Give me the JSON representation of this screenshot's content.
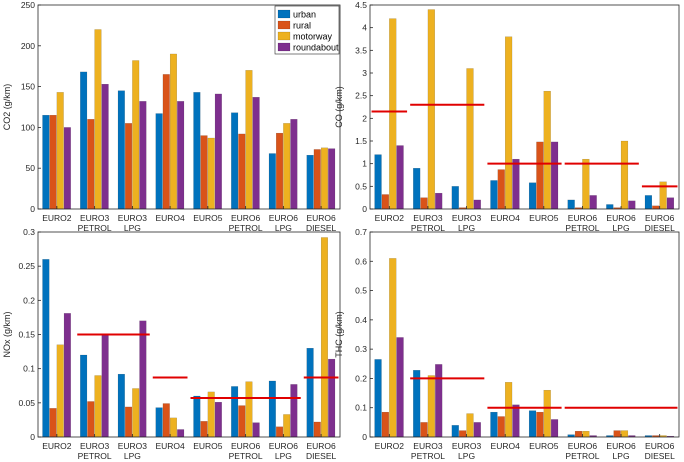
{
  "series_colors": [
    "#0072BD",
    "#D95319",
    "#EDB120",
    "#7E2F8E"
  ],
  "limit_color": "#E00000",
  "legend": {
    "labels": [
      "urban",
      "rural",
      "motorway",
      "roundabout"
    ]
  },
  "chart_data": [
    {
      "id": "co2",
      "type": "bar",
      "ylabel": "CO2 (g/km)",
      "ylim": [
        0,
        250
      ],
      "yticks": [
        "0",
        "50",
        "100",
        "150",
        "200",
        "250"
      ],
      "yticks_values": [
        0,
        50,
        100,
        150,
        200,
        250
      ],
      "categories": [
        [
          "EURO2"
        ],
        [
          "EURO3",
          "PETROL"
        ],
        [
          "EURO3",
          "LPG"
        ],
        [
          "EURO4"
        ],
        [
          "EURO5"
        ],
        [
          "EURO6",
          "PETROL"
        ],
        [
          "EURO6",
          "LPG"
        ],
        [
          "EURO6",
          "DIESEL"
        ]
      ],
      "series": [
        {
          "name": "urban",
          "values": [
            115,
            168,
            145,
            117,
            143,
            118,
            68,
            66
          ]
        },
        {
          "name": "rural",
          "values": [
            115,
            110,
            105,
            165,
            90,
            92,
            93,
            73
          ]
        },
        {
          "name": "motorway",
          "values": [
            143,
            220,
            182,
            190,
            87,
            170,
            105,
            75
          ]
        },
        {
          "name": "roundabout",
          "values": [
            100,
            153,
            132,
            132,
            141,
            137,
            110,
            74
          ]
        }
      ],
      "limits": []
    },
    {
      "id": "co",
      "type": "bar",
      "ylabel": "CO (g/km)",
      "ylim": [
        0,
        4.5
      ],
      "yticks": [
        "0",
        "0.5",
        "1",
        "1.5",
        "2",
        "2.5",
        "3",
        "3.5",
        "4",
        "4.5"
      ],
      "yticks_values": [
        0,
        0.5,
        1,
        1.5,
        2,
        2.5,
        3,
        3.5,
        4,
        4.5
      ],
      "categories": [
        [
          "EURO2"
        ],
        [
          "EURO3",
          "PETROL"
        ],
        [
          "EURO3",
          "LPG"
        ],
        [
          "EURO4"
        ],
        [
          "EURO5"
        ],
        [
          "EURO6",
          "PETROL"
        ],
        [
          "EURO6",
          "LPG"
        ],
        [
          "EURO6",
          "DIESEL"
        ]
      ],
      "series": [
        {
          "name": "urban",
          "values": [
            1.2,
            0.9,
            0.5,
            0.63,
            0.58,
            0.2,
            0.1,
            0.3
          ]
        },
        {
          "name": "rural",
          "values": [
            0.32,
            0.25,
            0.03,
            0.87,
            1.48,
            0.03,
            0.03,
            0.07
          ]
        },
        {
          "name": "motorway",
          "values": [
            4.2,
            4.4,
            3.1,
            3.8,
            2.6,
            1.1,
            1.5,
            0.6
          ]
        },
        {
          "name": "roundabout",
          "values": [
            1.4,
            0.35,
            0.2,
            1.1,
            1.48,
            0.3,
            0.18,
            0.25
          ]
        }
      ],
      "limits": [
        {
          "from": 0,
          "to": 0,
          "value": 2.15
        },
        {
          "from": 1,
          "to": 2,
          "value": 2.3
        },
        {
          "from": 3,
          "to": 4,
          "value": 1.0
        },
        {
          "from": 5,
          "to": 6,
          "value": 1.0
        },
        {
          "from": 7,
          "to": 7,
          "value": 0.5
        }
      ]
    },
    {
      "id": "nox",
      "type": "bar",
      "ylabel": "NOx (g/km)",
      "ylim": [
        0,
        0.3
      ],
      "yticks": [
        "0",
        "0.05",
        "0.1",
        "0.15",
        "0.2",
        "0.25",
        "0.3"
      ],
      "yticks_values": [
        0,
        0.05,
        0.1,
        0.15,
        0.2,
        0.25,
        0.3
      ],
      "categories": [
        [
          "EURO2"
        ],
        [
          "EURO3",
          "PETROL"
        ],
        [
          "EURO3",
          "LPG"
        ],
        [
          "EURO4"
        ],
        [
          "EURO5"
        ],
        [
          "EURO6",
          "PETROL"
        ],
        [
          "EURO6",
          "LPG"
        ],
        [
          "EURO6",
          "DIESEL"
        ]
      ],
      "series": [
        {
          "name": "urban",
          "values": [
            0.26,
            0.12,
            0.092,
            0.043,
            0.06,
            0.074,
            0.082,
            0.13
          ]
        },
        {
          "name": "rural",
          "values": [
            0.042,
            0.052,
            0.044,
            0.049,
            0.023,
            0.046,
            0.015,
            0.022
          ]
        },
        {
          "name": "motorway",
          "values": [
            0.135,
            0.09,
            0.071,
            0.028,
            0.066,
            0.081,
            0.033,
            0.292
          ]
        },
        {
          "name": "roundabout",
          "values": [
            0.181,
            0.15,
            0.17,
            0.011,
            0.051,
            0.021,
            0.077,
            0.114
          ]
        }
      ],
      "limits": [
        {
          "from": 1,
          "to": 2,
          "value": 0.15
        },
        {
          "from": 3,
          "to": 3,
          "value": 0.087
        },
        {
          "from": 4,
          "to": 6,
          "value": 0.057
        },
        {
          "from": 7,
          "to": 7,
          "value": 0.087
        }
      ]
    },
    {
      "id": "thc",
      "type": "bar",
      "ylabel": "THC (g/km)",
      "ylim": [
        0,
        0.7
      ],
      "yticks": [
        "0",
        "0.1",
        "0.2",
        "0.3",
        "0.4",
        "0.5",
        "0.6",
        "0.7"
      ],
      "yticks_values": [
        0,
        0.1,
        0.2,
        0.3,
        0.4,
        0.5,
        0.6,
        0.7
      ],
      "categories": [
        [
          "EURO2"
        ],
        [
          "EURO3",
          "PETROL"
        ],
        [
          "EURO3",
          "LPG"
        ],
        [
          "EURO4"
        ],
        [
          "EURO5"
        ],
        [
          "EURO6",
          "PETROL"
        ],
        [
          "EURO6",
          "LPG"
        ],
        [
          "EURO6",
          "DIESEL"
        ]
      ],
      "series": [
        {
          "name": "urban",
          "values": [
            0.265,
            0.228,
            0.04,
            0.085,
            0.09,
            0.008,
            0.005,
            0.005
          ]
        },
        {
          "name": "rural",
          "values": [
            0.085,
            0.05,
            0.022,
            0.07,
            0.085,
            0.02,
            0.022,
            0.005
          ]
        },
        {
          "name": "motorway",
          "values": [
            0.61,
            0.21,
            0.08,
            0.187,
            0.16,
            0.02,
            0.022,
            0.005
          ]
        },
        {
          "name": "roundabout",
          "values": [
            0.34,
            0.248,
            0.05,
            0.11,
            0.06,
            0.005,
            0.005,
            0.003
          ]
        }
      ],
      "limits": [
        {
          "from": 1,
          "to": 2,
          "value": 0.2
        },
        {
          "from": 3,
          "to": 4,
          "value": 0.1
        },
        {
          "from": 5,
          "to": 7,
          "value": 0.1
        }
      ]
    }
  ]
}
